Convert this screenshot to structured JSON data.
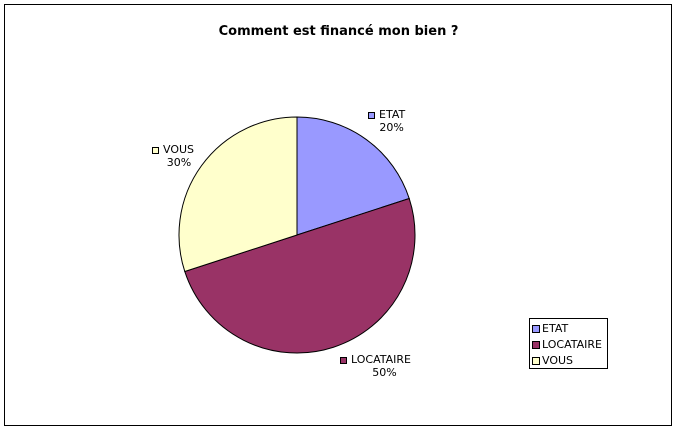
{
  "chart_data": {
    "type": "pie",
    "title": "Comment est financé mon bien ?",
    "categories": [
      "ETAT",
      "LOCATAIRE",
      "VOUS"
    ],
    "values": [
      20,
      50,
      30
    ],
    "value_labels": [
      "20%",
      "50%",
      "30%"
    ],
    "colors": [
      "#9999FF",
      "#993366",
      "#FFFFCC"
    ],
    "legend_position": "bottom-right"
  }
}
